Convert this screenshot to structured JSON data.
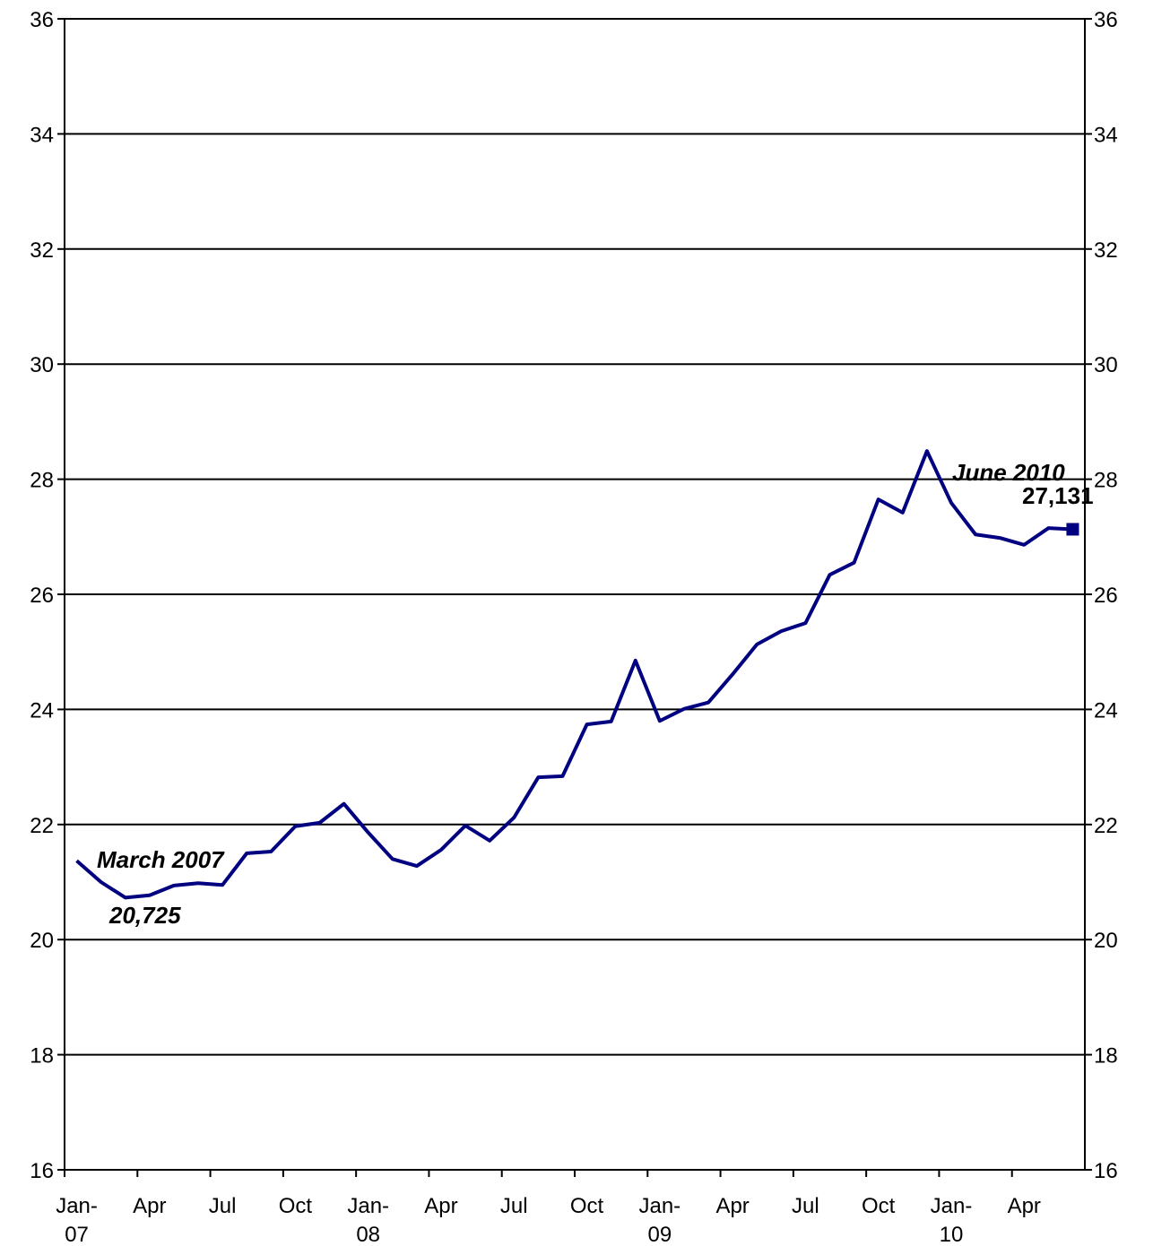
{
  "chart_data": {
    "type": "line",
    "categories": [
      "Jan-07",
      null,
      null,
      "Apr",
      null,
      null,
      "Jul",
      null,
      null,
      "Oct",
      null,
      null,
      "Jan-08",
      null,
      null,
      "Apr",
      null,
      null,
      "Jul",
      null,
      null,
      "Oct",
      null,
      null,
      "Jan-09",
      null,
      null,
      "Apr",
      null,
      null,
      "Jul",
      null,
      null,
      "Oct",
      null,
      null,
      "Jan-10",
      null,
      null,
      "Apr",
      null,
      null
    ],
    "series": [
      {
        "color": "#000080",
        "values": [
          21.37,
          21.0,
          20.73,
          20.77,
          20.94,
          20.98,
          20.95,
          21.5,
          21.53,
          21.97,
          22.03,
          22.36,
          21.86,
          21.4,
          21.28,
          21.56,
          21.98,
          21.72,
          22.12,
          22.82,
          22.84,
          23.74,
          23.79,
          24.85,
          23.8,
          24.01,
          24.12,
          24.61,
          25.13,
          25.36,
          25.5,
          26.34,
          26.55,
          27.65,
          27.42,
          28.49,
          27.59,
          27.04,
          26.98,
          26.86,
          27.15,
          27.13
        ]
      }
    ],
    "ylim": [
      16,
      36
    ],
    "yticks": [
      16,
      18,
      20,
      22,
      24,
      26,
      28,
      30,
      32,
      34,
      36
    ],
    "y2lim": [
      16,
      36
    ],
    "y2ticks": [
      16,
      18,
      20,
      22,
      24,
      26,
      28,
      30,
      32,
      34,
      36
    ],
    "grid": true,
    "annotations": [
      "March 2007",
      "20,725",
      "June 2010",
      "27,131"
    ]
  }
}
